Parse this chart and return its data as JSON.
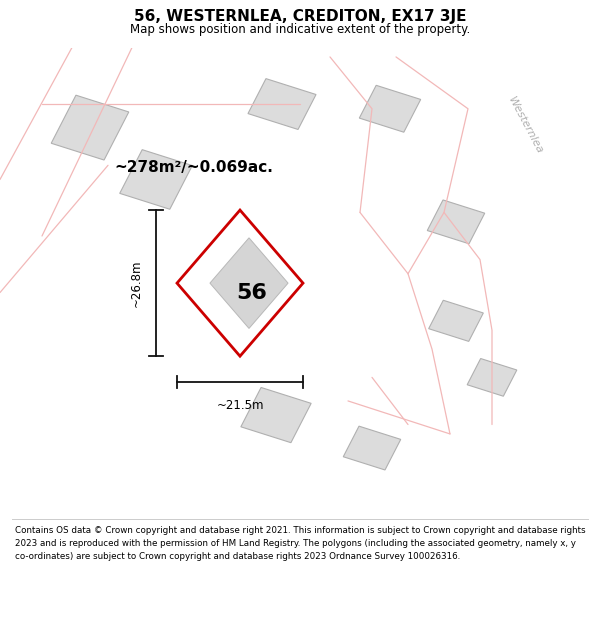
{
  "title": "56, WESTERNLEA, CREDITON, EX17 3JE",
  "subtitle": "Map shows position and indicative extent of the property.",
  "footer": "Contains OS data © Crown copyright and database right 2021. This information is subject to Crown copyright and database rights 2023 and is reproduced with the permission of HM Land Registry. The polygons (including the associated geometry, namely x, y co-ordinates) are subject to Crown copyright and database rights 2023 Ordnance Survey 100026316.",
  "area_label": "~278m²/~0.069ac.",
  "number_label": "56",
  "width_label": "~21.5m",
  "height_label": "~26.8m",
  "street_label": "Westernlea",
  "map_bg": "#ffffff",
  "plot_outline_color": "#cc0000",
  "neighbor_fill": "#dcdcdc",
  "neighbor_outline": "#b0b0b0",
  "road_pink": "#f2b8b8",
  "dim_line_color": "#111111"
}
